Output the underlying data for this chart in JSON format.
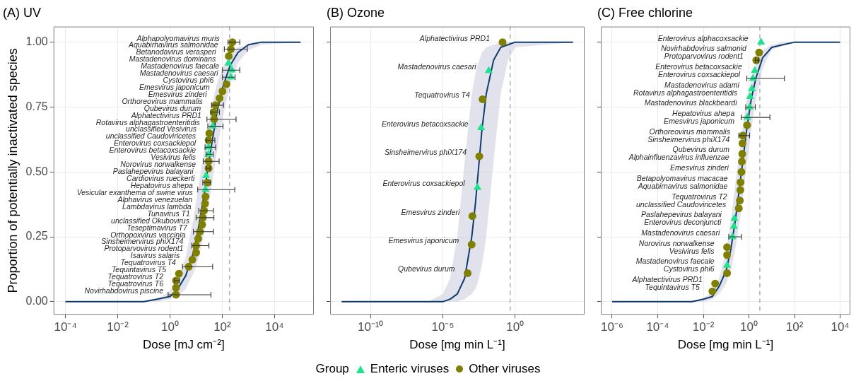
{
  "chart_data": [
    {
      "type": "scatter",
      "title": "(A) UV",
      "xlabel": "Dose [mJ cm⁻²]",
      "ylabel": "Proportion of potentially inactivated species",
      "legend_title": "Group",
      "legend": "bottom",
      "log": "x",
      "grid": true,
      "xlim": [
        3.5e-05,
        320000
      ],
      "xticks": [
        {
          "value": 0.0001,
          "label": "10⁻⁴"
        },
        {
          "value": 0.01,
          "label": "10⁻²"
        },
        {
          "value": 1,
          "label": "10⁰"
        },
        {
          "value": 100,
          "label": "10²"
        },
        {
          "value": 10000,
          "label": "10⁴"
        }
      ],
      "ylim": [
        -0.05,
        1.06
      ],
      "yticks": [
        {
          "value": 0,
          "label": "0.00"
        },
        {
          "value": 0.25,
          "label": "0.25"
        },
        {
          "value": 0.5,
          "label": "0.50"
        },
        {
          "value": 0.75,
          "label": "0.75"
        },
        {
          "value": 1,
          "label": "1.00"
        }
      ],
      "ref_lines": [
        {
          "axis": "x",
          "value": 190,
          "color": "#b3b3b3",
          "line_style": "dashed"
        }
      ],
      "series": [
        {
          "type": "line",
          "color": "#0f3c6e",
          "marker": "none",
          "x": [
            0.0001,
            0.1,
            0.32,
            1,
            2,
            4,
            7.9,
            12.6,
            20,
            27,
            40,
            63,
            100,
            200,
            400,
            1000,
            3200,
            100000
          ],
          "values": [
            0,
            0,
            0.01,
            0.02,
            0.05,
            0.1,
            0.19,
            0.29,
            0.41,
            0.5,
            0.61,
            0.73,
            0.82,
            0.91,
            0.96,
            0.99,
            1,
            1
          ],
          "upper": [
            0,
            0,
            0.01,
            0.04,
            0.09,
            0.17,
            0.32,
            0.45,
            0.58,
            0.66,
            0.76,
            0.84,
            0.9,
            0.95,
            0.98,
            0.99,
            1,
            1
          ],
          "lower": [
            0,
            0,
            0,
            0.01,
            0.02,
            0.05,
            0.11,
            0.17,
            0.26,
            0.34,
            0.45,
            0.58,
            0.7,
            0.84,
            0.92,
            0.97,
            0.99,
            1
          ]
        },
        {
          "name": "Enteric viruses",
          "type": "scatter",
          "color": "#1de38c",
          "marker": "triangle",
          "x": [
            174,
            234,
            214,
            43,
            30,
            30,
            24,
            23
          ],
          "values": [
            0.919,
            0.892,
            0.865,
            0.676,
            0.595,
            0.568,
            0.486,
            0.432
          ],
          "xerrors": [
            null,
            [
              102,
              468
            ],
            [
              102,
              309
            ],
            [
              28,
              107
            ],
            [
              22,
              56
            ],
            [
              24,
              45
            ],
            null,
            [
              11.5,
              302
            ]
          ]
        },
        {
          "name": "Other viruses",
          "type": "scatter",
          "color": "#808000",
          "marker": "circle",
          "x": [
            245,
            214,
            178,
            145,
            102,
            79,
            55,
            47,
            49,
            32,
            30,
            30,
            30,
            27,
            23,
            22,
            20,
            18,
            17,
            14,
            12,
            10,
            10,
            7.2,
            5.2,
            2.2,
            1.7,
            1.7,
            1.7
          ],
          "values": [
            1,
            0.973,
            0.946,
            0.838,
            0.811,
            0.784,
            0.757,
            0.73,
            0.703,
            0.649,
            0.622,
            0.541,
            0.514,
            0.459,
            0.405,
            0.378,
            0.351,
            0.324,
            0.297,
            0.27,
            0.243,
            0.216,
            0.189,
            0.162,
            0.135,
            0.108,
            0.081,
            0.054,
            0.027
          ],
          "xerrors": [
            [
              166,
              468
            ],
            [
              120,
              912
            ],
            null,
            null,
            null,
            null,
            [
              39,
              112
            ],
            [
              37,
              78
            ],
            [
              26,
              339
            ],
            null,
            [
              25,
              52
            ],
            [
              19,
              76
            ],
            [
              24.5,
              34
            ],
            [
              18,
              36
            ],
            null,
            null,
            [
              12.6,
              46
            ],
            [
              10,
              48
            ],
            null,
            [
              7.9,
              46
            ],
            null,
            [
              6.8,
              31
            ],
            null,
            null,
            [
              3,
              43
            ],
            null,
            [
              1.5,
              2.3
            ],
            null,
            [
              0.85,
              37
            ]
          ]
        }
      ],
      "annotations": [
        {
          "text": "Alphapolyomavirus muris",
          "x": 245,
          "y": 1
        },
        {
          "text": "Aquabirnavirus salmonidae",
          "x": 214,
          "y": 0.973
        },
        {
          "text": "Betanodavirus verasperi",
          "x": 178,
          "y": 0.946
        },
        {
          "text": "Mastadenovirus dominans",
          "x": 174,
          "y": 0.919
        },
        {
          "text": "Mastadenovirus faecale",
          "x": 234,
          "y": 0.892
        },
        {
          "text": "Mastadenovirus caesari",
          "x": 214,
          "y": 0.865
        },
        {
          "text": "Cystovirus phi6",
          "x": 145,
          "y": 0.838
        },
        {
          "text": "Emesvirus japonicum",
          "x": 102,
          "y": 0.811
        },
        {
          "text": "Emesvirus zinderi",
          "x": 79,
          "y": 0.784
        },
        {
          "text": "Orthoreovirus mammalis",
          "x": 55,
          "y": 0.757
        },
        {
          "text": "Qubevirus durum",
          "x": 47,
          "y": 0.73
        },
        {
          "text": "Alphatectivirus PRD1",
          "x": 49,
          "y": 0.703
        },
        {
          "text": "Rotavirus alphagastroenteritidis",
          "x": 43,
          "y": 0.676
        },
        {
          "text": "unclassified Vesivirus",
          "x": 32,
          "y": 0.649
        },
        {
          "text": "unclassified Caudoviricetes",
          "x": 30,
          "y": 0.622
        },
        {
          "text": "Enterovirus coxsackiepol",
          "x": 30,
          "y": 0.595
        },
        {
          "text": "Enterovirus betacoxsackie",
          "x": 30,
          "y": 0.568
        },
        {
          "text": "Vesivirus felis",
          "x": 30,
          "y": 0.541
        },
        {
          "text": "Norovirus norwalkense",
          "x": 30,
          "y": 0.514
        },
        {
          "text": "Paslahepevirus balayani",
          "x": 24,
          "y": 0.486
        },
        {
          "text": "Cardiovirus rueckerti",
          "x": 27,
          "y": 0.459
        },
        {
          "text": "Hepatovirus ahepa",
          "x": 23,
          "y": 0.432
        },
        {
          "text": "Vesicular exanthema of swine virus",
          "x": 23,
          "y": 0.405
        },
        {
          "text": "Alphavirus venezuelan",
          "x": 22,
          "y": 0.378
        },
        {
          "text": "Lambdavirus lambda",
          "x": 20,
          "y": 0.351
        },
        {
          "text": "Tunavirus T1",
          "x": 18,
          "y": 0.324
        },
        {
          "text": "unclassified Okubovirus",
          "x": 17,
          "y": 0.297
        },
        {
          "text": "Teseptimavirus T7",
          "x": 14,
          "y": 0.27
        },
        {
          "text": "Orthopoxvirus vaccinia",
          "x": 12,
          "y": 0.243
        },
        {
          "text": "Sinsheimervirus phiX174",
          "x": 10,
          "y": 0.216
        },
        {
          "text": "Protoparvovirus rodent1",
          "x": 10,
          "y": 0.189
        },
        {
          "text": "Isavirus salaris",
          "x": 7.2,
          "y": 0.162
        },
        {
          "text": "Tequatrovirus T4",
          "x": 5.2,
          "y": 0.135
        },
        {
          "text": "Tequintavirus T5",
          "x": 2.2,
          "y": 0.108
        },
        {
          "text": "Tequatrovirus T2",
          "x": 1.7,
          "y": 0.081
        },
        {
          "text": "Tequatrovirus T6",
          "x": 1.7,
          "y": 0.054
        },
        {
          "text": "Novirhabdovirus piscine",
          "x": 1.7,
          "y": 0.027
        }
      ]
    },
    {
      "type": "scatter",
      "title": "(B) Ozone",
      "xlabel": "Dose [mg min L⁻¹]",
      "log": "x",
      "grid": true,
      "tick_labels": "x",
      "xlim": [
        1.6e-13,
        63000
      ],
      "xticks": [
        {
          "value": 1e-10,
          "label": "10⁻¹⁰"
        },
        {
          "value": 1e-05,
          "label": "10⁻⁵"
        },
        {
          "value": 1,
          "label": "10⁰"
        }
      ],
      "ylim": [
        -0.05,
        1.06
      ],
      "yticks": [
        0,
        0.25,
        0.5,
        0.75,
        1
      ],
      "ref_lines": [
        {
          "axis": "x",
          "value": 0.45,
          "color": "#b3b3b3",
          "line_style": "dashed"
        }
      ],
      "series": [
        {
          "type": "line",
          "color": "#0f3c6e",
          "marker": "none",
          "x": [
            1e-12,
            1e-06,
            1e-05,
            3.2e-05,
            0.0001,
            0.00032,
            0.001,
            0.0018,
            0.0028,
            0.005,
            0.01,
            0.032,
            0.1,
            0.32,
            1,
            10000
          ],
          "values": [
            0,
            0,
            0,
            0.01,
            0.03,
            0.09,
            0.25,
            0.38,
            0.5,
            0.66,
            0.8,
            0.93,
            0.98,
            0.99,
            1,
            1
          ],
          "upper": [
            0,
            0,
            0.03,
            0.09,
            0.25,
            0.54,
            0.8,
            0.88,
            0.92,
            0.96,
            0.98,
            0.99,
            1,
            1,
            1,
            1
          ],
          "lower": [
            0,
            0,
            0,
            0,
            0,
            0.01,
            0.03,
            0.05,
            0.08,
            0.14,
            0.25,
            0.54,
            0.8,
            0.93,
            0.98,
            1
          ]
        },
        {
          "type": "scatter",
          "color": "#1de38c",
          "marker": "triangle",
          "x": [
            0.015,
            0.0044,
            0.0025
          ],
          "values": [
            0.89,
            0.67,
            0.44
          ]
        },
        {
          "type": "scatter",
          "color": "#808000",
          "marker": "circle",
          "x": [
            0.135,
            0.0056,
            0.0033,
            0.0011,
            0.00098,
            0.00052
          ],
          "values": [
            1,
            0.78,
            0.56,
            0.33,
            0.22,
            0.11
          ]
        }
      ],
      "annotations": [
        {
          "text": "Alphatectivirus PRD1",
          "x": 0.135,
          "y": 1
        },
        {
          "text": "Mastadenovirus caesari",
          "x": 0.015,
          "y": 0.89
        },
        {
          "text": "Tequatrovirus T4",
          "x": 0.0056,
          "y": 0.78
        },
        {
          "text": "Enterovirus betacoxsackie",
          "x": 0.0044,
          "y": 0.67
        },
        {
          "text": "Sinsheimervirus phiX174",
          "x": 0.0033,
          "y": 0.56
        },
        {
          "text": "Enterovirus coxsackiepol",
          "x": 0.0025,
          "y": 0.44
        },
        {
          "text": "Emesvirus zinderi",
          "x": 0.0011,
          "y": 0.33
        },
        {
          "text": "Emesvirus japonicum",
          "x": 0.00098,
          "y": 0.22
        },
        {
          "text": "Qubevirus durum",
          "x": 0.00052,
          "y": 0.11
        }
      ]
    },
    {
      "type": "scatter",
      "title": "(C) Free chlorine",
      "xlabel": "Dose [mg min L⁻¹]",
      "log": "x",
      "grid": true,
      "tick_labels": "x",
      "xlim": [
        3.2e-07,
        28000
      ],
      "xticks": [
        {
          "value": 1e-06,
          "label": "10⁻⁶"
        },
        {
          "value": 0.0001,
          "label": "10⁻⁴"
        },
        {
          "value": 0.01,
          "label": "10⁻²"
        },
        {
          "value": 1,
          "label": "10⁰"
        },
        {
          "value": 100,
          "label": "10²"
        },
        {
          "value": 10000,
          "label": "10⁴"
        }
      ],
      "ylim": [
        -0.05,
        1.06
      ],
      "yticks": [
        0,
        0.25,
        0.5,
        0.75,
        1
      ],
      "ref_lines": [
        {
          "axis": "x",
          "value": 3,
          "color": "#b3b3b3",
          "line_style": "dashed"
        }
      ],
      "series": [
        {
          "type": "line",
          "color": "#0f3c6e",
          "marker": "none",
          "x": [
            1e-06,
            0.001,
            0.0032,
            0.01,
            0.025,
            0.05,
            0.1,
            0.16,
            0.25,
            0.47,
            0.79,
            1.26,
            2,
            4,
            10,
            32,
            100,
            10000
          ],
          "values": [
            0,
            0,
            0,
            0.01,
            0.02,
            0.06,
            0.12,
            0.2,
            0.31,
            0.5,
            0.66,
            0.78,
            0.86,
            0.94,
            0.98,
            0.99,
            1,
            1
          ],
          "upper": [
            0,
            0,
            0,
            0.01,
            0.04,
            0.09,
            0.2,
            0.31,
            0.45,
            0.64,
            0.78,
            0.86,
            0.92,
            0.97,
            0.99,
            1,
            1,
            1
          ],
          "lower": [
            0,
            0,
            0,
            0,
            0.01,
            0.03,
            0.07,
            0.12,
            0.2,
            0.36,
            0.52,
            0.66,
            0.78,
            0.9,
            0.97,
            0.99,
            1,
            1
          ]
        },
        {
          "type": "scatter",
          "color": "#1de38c",
          "marker": "triangle",
          "x": [
            3.4,
            1.8,
            1.5,
            1.35,
            1.12,
            1.07,
            0.85,
            0.23,
            0.22,
            0.19,
            0.11
          ],
          "values": [
            1,
            0.89,
            0.86,
            0.82,
            0.79,
            0.75,
            0.71,
            0.32,
            0.29,
            0.25,
            0.14
          ],
          "xerrors": [
            null,
            null,
            [
              0.81,
              36
            ],
            null,
            null,
            [
              0.72,
              1.9
            ],
            [
              0.46,
              8.3
            ],
            null,
            null,
            [
              0.13,
              0.47
            ],
            null
          ]
        },
        {
          "type": "scatter",
          "color": "#808000",
          "marker": "circle",
          "x": [
            2.8,
            2.1,
            0.83,
            0.54,
            0.52,
            0.51,
            0.49,
            0.47,
            0.43,
            0.42,
            0.4,
            0.36,
            0.11,
            0.11,
            0.11,
            0.033,
            0.025
          ],
          "values": [
            0.96,
            0.93,
            0.68,
            0.64,
            0.61,
            0.57,
            0.54,
            0.5,
            0.46,
            0.43,
            0.39,
            0.36,
            0.21,
            0.18,
            0.11,
            0.07,
            0.04
          ],
          "xerrors": [
            null,
            [
              1.9,
              2.7
            ],
            null,
            [
              0.36,
              1.07
            ],
            null,
            null,
            null,
            null,
            null,
            null,
            null,
            null,
            null,
            null,
            null,
            null,
            null
          ]
        }
      ],
      "annotations": [
        {
          "text": "Enterovirus alphacoxsackie",
          "x": 3.4,
          "y": 1
        },
        {
          "text": "Novirhabdovirus salmonid",
          "x": 2.8,
          "y": 0.96
        },
        {
          "text": "Protoparvovirus rodent1",
          "x": 2.1,
          "y": 0.93
        },
        {
          "text": "Enterovirus betacoxsackie",
          "x": 1.8,
          "y": 0.89
        },
        {
          "text": "Enterovirus coxsackiepol",
          "x": 1.5,
          "y": 0.86
        },
        {
          "text": "Mastadenovirus adami",
          "x": 1.35,
          "y": 0.82
        },
        {
          "text": "Rotavirus alphagastroenteritidis",
          "x": 1.12,
          "y": 0.79
        },
        {
          "text": "Mastadenovirus blackbeardi",
          "x": 1.07,
          "y": 0.75
        },
        {
          "text": "Hepatovirus ahepa",
          "x": 0.85,
          "y": 0.71
        },
        {
          "text": "Emesvirus japonicum",
          "x": 0.83,
          "y": 0.68
        },
        {
          "text": "Orthoreovirus mammalis",
          "x": 0.54,
          "y": 0.64
        },
        {
          "text": "Sinsheimervirus phiX174",
          "x": 0.52,
          "y": 0.61
        },
        {
          "text": "Qubevirus durum",
          "x": 0.51,
          "y": 0.57
        },
        {
          "text": "Alphainfluenzavirus influenzae",
          "x": 0.49,
          "y": 0.54
        },
        {
          "text": "Emesvirus zinderi",
          "x": 0.47,
          "y": 0.5
        },
        {
          "text": "Betapolyomavirus macacae",
          "x": 0.43,
          "y": 0.46
        },
        {
          "text": "Aquabirnavirus salmonidae",
          "x": 0.42,
          "y": 0.43
        },
        {
          "text": "Tequatrovirus T2",
          "x": 0.4,
          "y": 0.39
        },
        {
          "text": "unclassified Caudoviricetes",
          "x": 0.36,
          "y": 0.36
        },
        {
          "text": "Paslahepevirus balayani",
          "x": 0.23,
          "y": 0.32
        },
        {
          "text": "Enterovirus deconjuncti",
          "x": 0.22,
          "y": 0.29
        },
        {
          "text": "Mastadenovirus caesari",
          "x": 0.19,
          "y": 0.25
        },
        {
          "text": "Norovirus norwalkense",
          "x": 0.11,
          "y": 0.21
        },
        {
          "text": "Vesivirus felis",
          "x": 0.11,
          "y": 0.18
        },
        {
          "text": "Mastadenovirus faecale",
          "x": 0.11,
          "y": 0.14
        },
        {
          "text": "Cystovirus phi6",
          "x": 0.11,
          "y": 0.11
        },
        {
          "text": "Alphatectivirus PRD1",
          "x": 0.033,
          "y": 0.07
        },
        {
          "text": "Tequintavirus T5",
          "x": 0.025,
          "y": 0.04
        }
      ]
    }
  ]
}
